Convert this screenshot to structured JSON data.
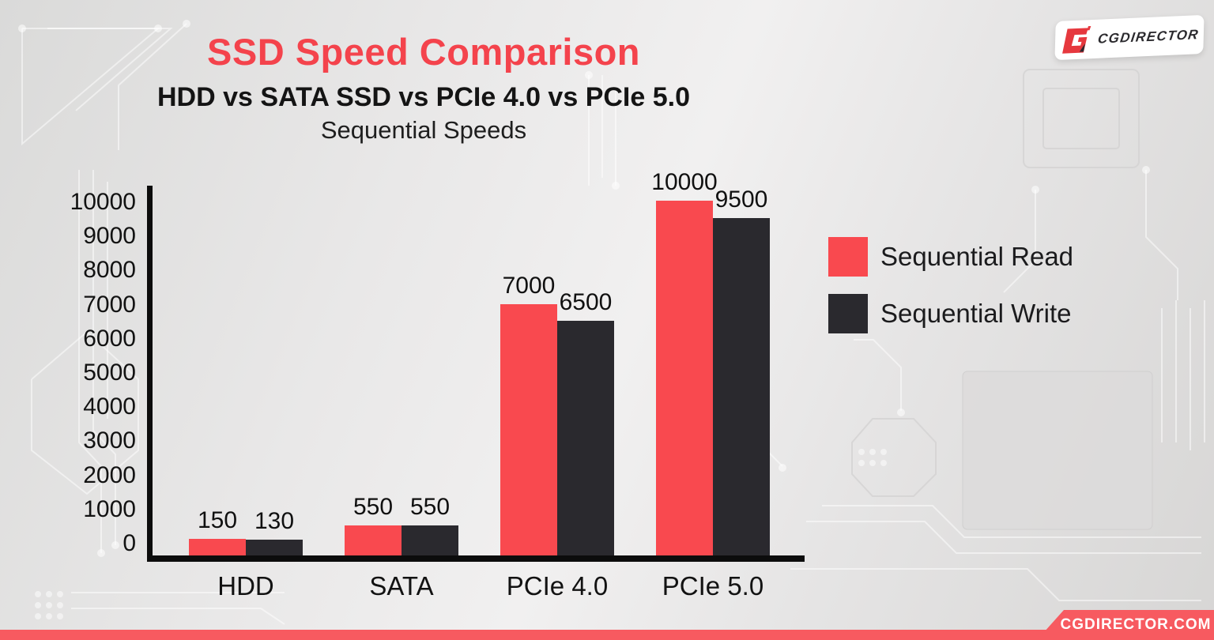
{
  "header": {
    "title": "SSD Speed Comparison",
    "subtitle": "HDD vs SATA SSD vs PCIe 4.0 vs PCIe 5.0",
    "subsubtitle": "Sequential Speeds"
  },
  "logo": {
    "text": "CGDIRECTOR"
  },
  "footer": {
    "site": "CGDIRECTOR.COM"
  },
  "colors": {
    "title_red": "#f4434c",
    "bar_red": "#f9494f",
    "bar_dark": "#2a292e",
    "banner_red": "#f75a60",
    "logo_red": "#e6383e",
    "axis_black": "#0c0c0c"
  },
  "chart_data": {
    "type": "bar",
    "title": "SSD Speed Comparison",
    "subtitle": "HDD vs SATA SSD vs PCIe 4.0 vs PCIe 5.0 — Sequential Speeds",
    "categories": [
      "HDD",
      "SATA",
      "PCIe 4.0",
      "PCIe 5.0"
    ],
    "series": [
      {
        "name": "Sequential Read",
        "color": "#f9494f",
        "values": [
          150,
          550,
          7000,
          10000
        ]
      },
      {
        "name": "Sequential Write",
        "color": "#2a292e",
        "values": [
          130,
          550,
          6500,
          9500
        ]
      }
    ],
    "ylabel": "",
    "xlabel": "",
    "ylim": [
      0,
      10000
    ],
    "yticks": [
      0,
      1000,
      2000,
      3000,
      4000,
      5000,
      6000,
      7000,
      8000,
      9000,
      10000
    ],
    "grid": false,
    "legend_position": "right",
    "data_labels": true
  }
}
